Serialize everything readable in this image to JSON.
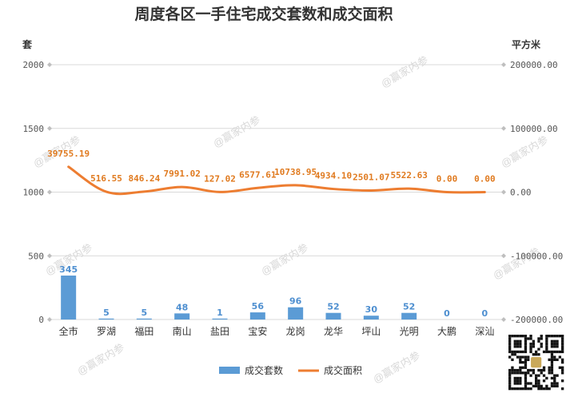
{
  "chart_data": {
    "type": "bar",
    "title": "周度各区一手住宅成交套数和成交面积",
    "ylabel_left": "套",
    "ylabel_right": "平方米",
    "categories": [
      "全市",
      "罗湖",
      "福田",
      "南山",
      "盐田",
      "宝安",
      "龙岗",
      "龙华",
      "坪山",
      "光明",
      "大鹏",
      "深汕"
    ],
    "series": [
      {
        "name": "成交套数",
        "type": "bar",
        "axis": "left",
        "color": "#5b9bd5",
        "values": [
          345,
          5,
          5,
          48,
          1,
          56,
          96,
          52,
          30,
          52,
          0,
          0
        ],
        "labels": [
          "345",
          "5",
          "5",
          "48",
          "1",
          "56",
          "96",
          "52",
          "30",
          "52",
          "0",
          "0"
        ]
      },
      {
        "name": "成交面积",
        "type": "line",
        "axis": "right",
        "color": "#ed7d31",
        "values": [
          39755.19,
          516.55,
          846.24,
          7991.02,
          127.02,
          6577.61,
          10738.95,
          4934.1,
          2501.07,
          5522.63,
          0.0,
          0.0
        ],
        "labels": [
          "39755.19",
          "516.55",
          "846.24",
          "7991.02",
          "127.02",
          "6577.61",
          "10738.95",
          "4934.10",
          "2501.07",
          "5522.63",
          "0.00",
          "0.00"
        ]
      }
    ],
    "ylim_left": [
      0,
      2000
    ],
    "yticks_left": [
      "0",
      "500",
      "1000",
      "1500",
      "2000"
    ],
    "ylim_right": [
      -200000,
      200000
    ],
    "yticks_right": [
      "-200000.00",
      "-100000.00",
      "0.00",
      "100000.00",
      "200000.00"
    ],
    "grid": true,
    "legend_position": "bottom"
  },
  "watermark_text": "@赢家内参"
}
